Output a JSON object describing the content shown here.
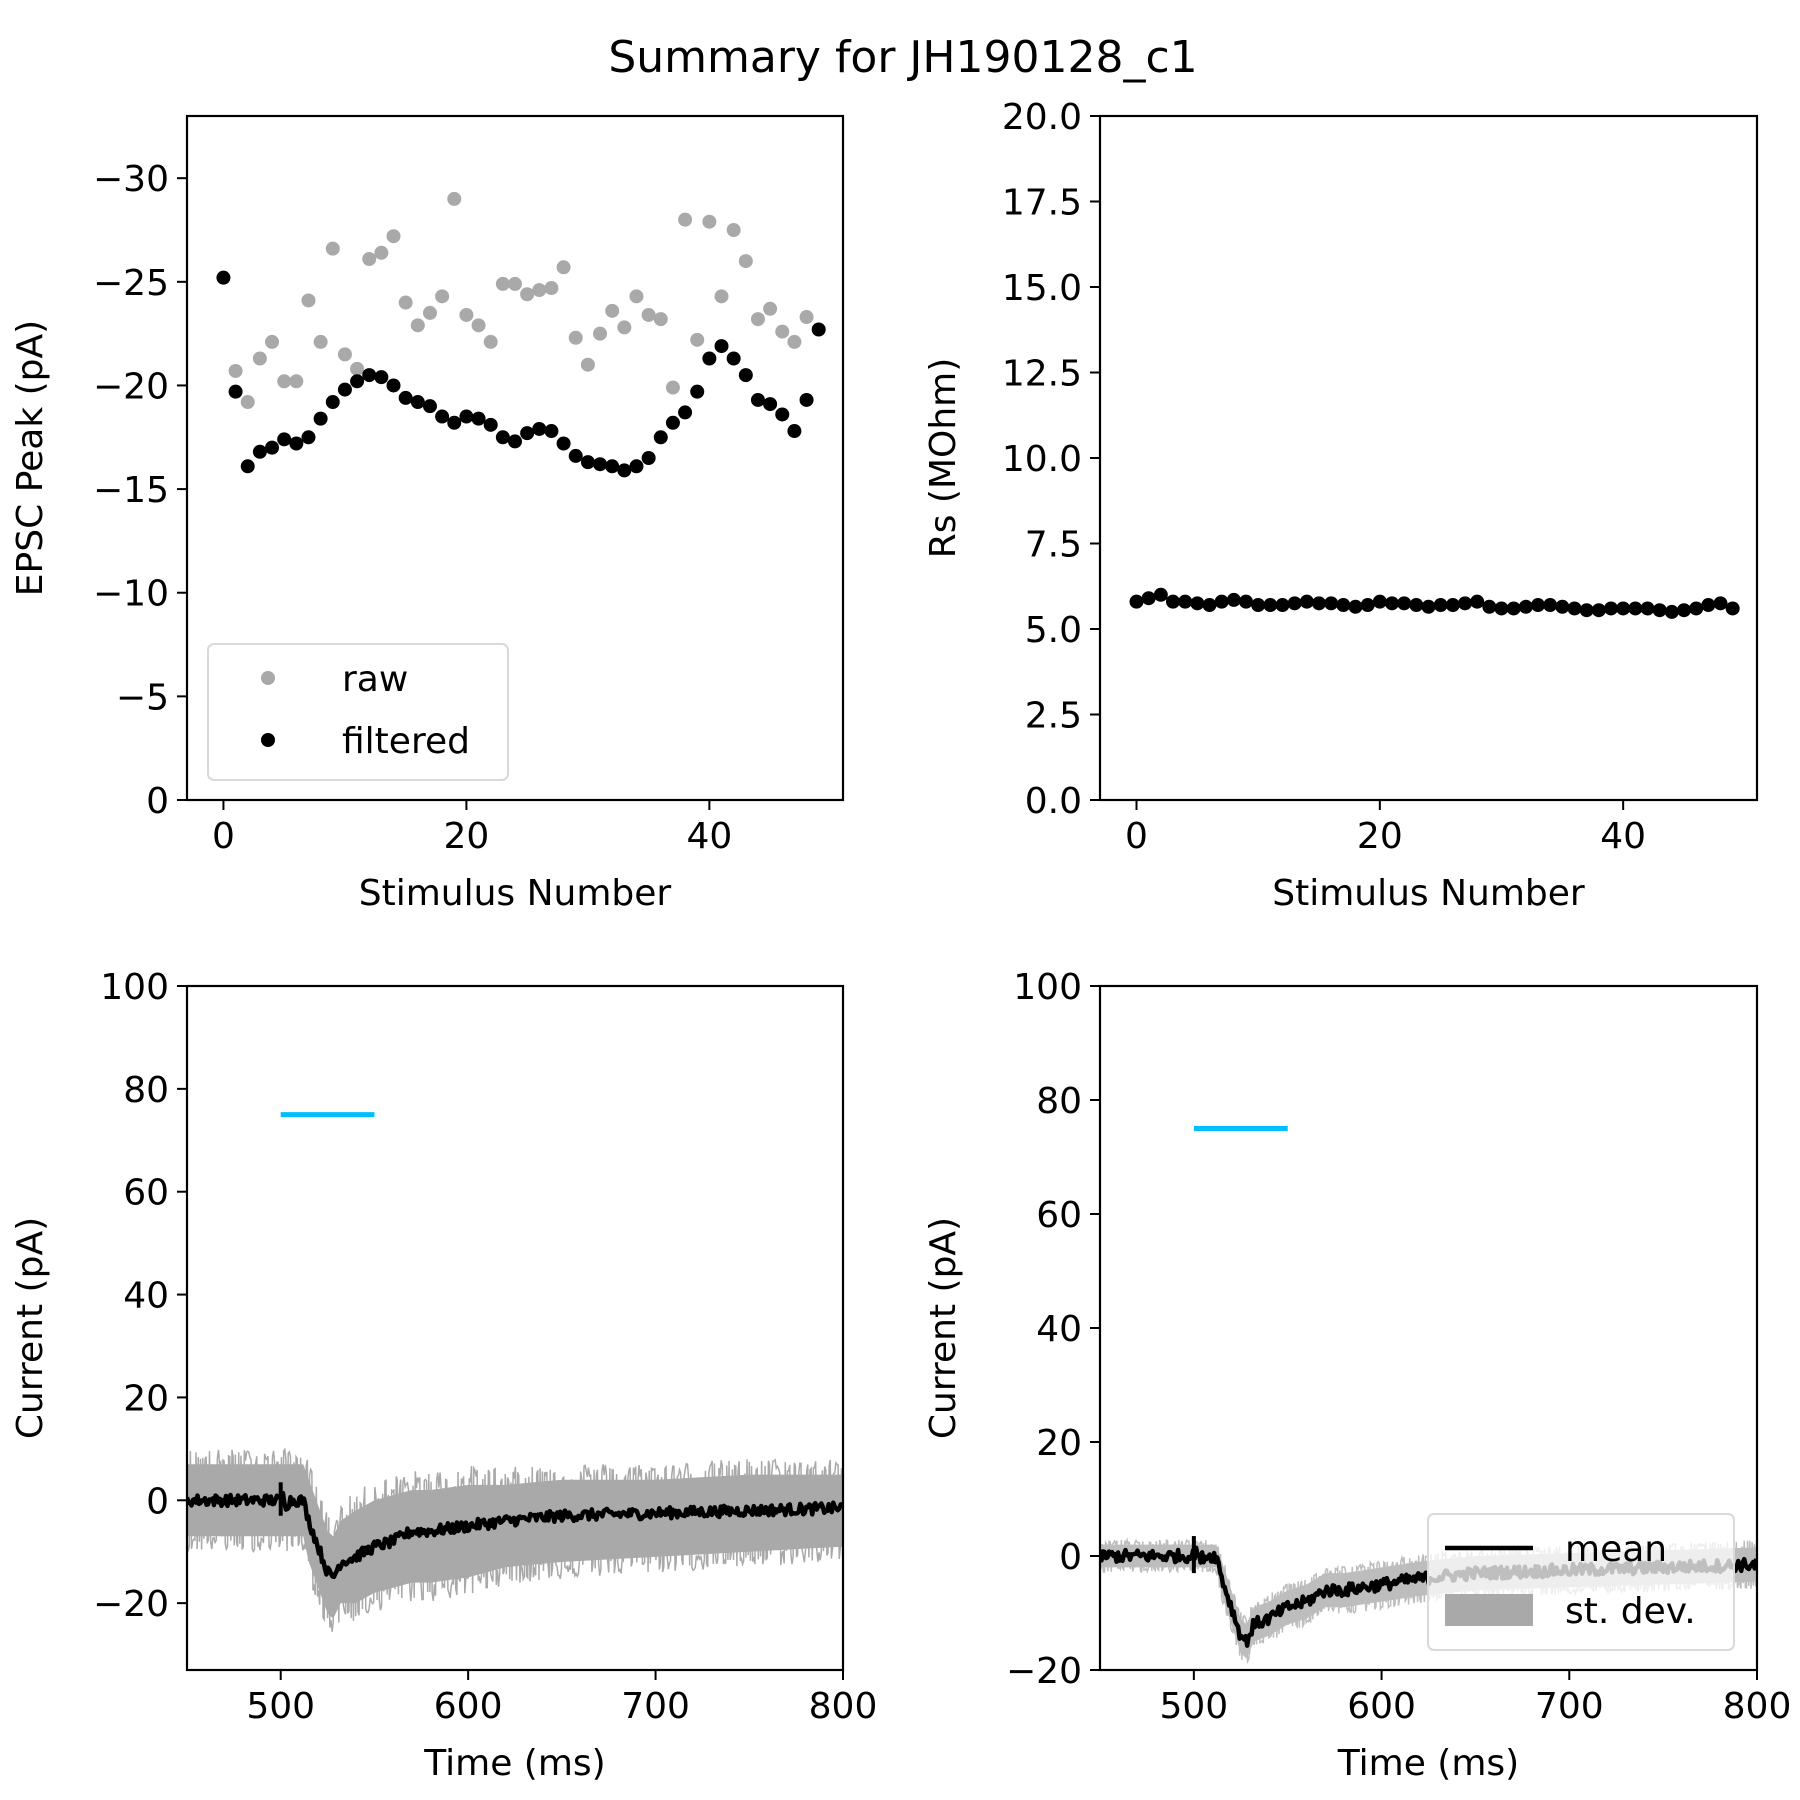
{
  "figure": {
    "title": "Summary for JH190128_c1"
  },
  "chart_data": [
    {
      "type": "scatter",
      "xlabel": "Stimulus Number",
      "ylabel": "EPSC Peak (pA)",
      "xlim": [
        -3,
        51
      ],
      "ylim": [
        0,
        -33
      ],
      "y_inverted": true,
      "xticks": [
        0,
        20,
        40
      ],
      "yticks": [
        0,
        -5,
        -10,
        -15,
        -20,
        -25,
        -30
      ],
      "ytick_labels": [
        "0",
        "−5",
        "−10",
        "−15",
        "−20",
        "−25",
        "−30"
      ],
      "grid": false,
      "legend": {
        "placement": "lower-left",
        "entries": [
          "raw",
          "filtered"
        ]
      },
      "series": [
        {
          "name": "raw",
          "color": "#a9a9a9",
          "x": [
            1,
            2,
            3,
            4,
            5,
            6,
            7,
            8,
            9,
            10,
            11,
            12,
            13,
            14,
            15,
            16,
            17,
            18,
            19,
            20,
            21,
            22,
            23,
            24,
            25,
            26,
            27,
            28,
            29,
            30,
            31,
            32,
            33,
            34,
            35,
            36,
            37,
            38,
            39,
            40,
            41,
            42,
            43,
            44,
            45,
            46,
            47,
            48
          ],
          "y": [
            -20.7,
            -19.2,
            -21.3,
            -22.1,
            -20.2,
            -20.2,
            -24.1,
            -22.1,
            -26.6,
            -21.5,
            -20.8,
            -26.1,
            -26.4,
            -27.2,
            -24.0,
            -22.9,
            -23.5,
            -24.3,
            -29.0,
            -23.4,
            -22.9,
            -22.1,
            -24.9,
            -24.9,
            -24.4,
            -24.6,
            -24.7,
            -25.7,
            -22.3,
            -21.0,
            -22.5,
            -23.6,
            -22.8,
            -24.3,
            -23.4,
            -23.2,
            -19.9,
            -28.0,
            -22.2,
            -27.9,
            -24.3,
            -27.5,
            -26.0,
            -23.2,
            -23.7,
            -22.6,
            -22.1,
            -23.3
          ]
        },
        {
          "name": "filtered",
          "color": "#000000",
          "x": [
            0,
            1,
            2,
            3,
            4,
            5,
            6,
            7,
            8,
            9,
            10,
            11,
            12,
            13,
            14,
            15,
            16,
            17,
            18,
            19,
            20,
            21,
            22,
            23,
            24,
            25,
            26,
            27,
            28,
            29,
            30,
            31,
            32,
            33,
            34,
            35,
            36,
            37,
            38,
            39,
            40,
            41,
            42,
            43,
            44,
            45,
            46,
            47,
            48,
            49
          ],
          "y": [
            -25.2,
            -19.7,
            -16.1,
            -16.8,
            -17.0,
            -17.4,
            -17.2,
            -17.5,
            -18.4,
            -19.2,
            -19.8,
            -20.2,
            -20.5,
            -20.4,
            -20.0,
            -19.4,
            -19.2,
            -19.0,
            -18.5,
            -18.2,
            -18.5,
            -18.4,
            -18.1,
            -17.5,
            -17.3,
            -17.7,
            -17.9,
            -17.8,
            -17.2,
            -16.6,
            -16.3,
            -16.2,
            -16.1,
            -15.9,
            -16.1,
            -16.5,
            -17.5,
            -18.2,
            -18.7,
            -19.7,
            -21.3,
            -21.9,
            -21.3,
            -20.5,
            -19.3,
            -19.1,
            -18.6,
            -17.8,
            -19.3,
            -22.7
          ]
        }
      ]
    },
    {
      "type": "line",
      "xlabel": "Stimulus Number",
      "ylabel": "Rs (MOhm)",
      "xlim": [
        -3,
        51
      ],
      "ylim": [
        0,
        20
      ],
      "xticks": [
        0,
        20,
        40
      ],
      "yticks": [
        0.0,
        2.5,
        5.0,
        7.5,
        10.0,
        12.5,
        15.0,
        17.5,
        20.0
      ],
      "ytick_labels": [
        "0.0",
        "2.5",
        "5.0",
        "7.5",
        "10.0",
        "12.5",
        "15.0",
        "17.5",
        "20.0"
      ],
      "grid": false,
      "series": [
        {
          "color": "#000000",
          "marker": "circle",
          "x": [
            0,
            1,
            2,
            3,
            4,
            5,
            6,
            7,
            8,
            9,
            10,
            11,
            12,
            13,
            14,
            15,
            16,
            17,
            18,
            19,
            20,
            21,
            22,
            23,
            24,
            25,
            26,
            27,
            28,
            29,
            30,
            31,
            32,
            33,
            34,
            35,
            36,
            37,
            38,
            39,
            40,
            41,
            42,
            43,
            44,
            45,
            46,
            47,
            48,
            49
          ],
          "y": [
            5.8,
            5.9,
            6.0,
            5.8,
            5.8,
            5.75,
            5.7,
            5.8,
            5.85,
            5.8,
            5.7,
            5.7,
            5.7,
            5.75,
            5.8,
            5.75,
            5.75,
            5.7,
            5.65,
            5.7,
            5.8,
            5.75,
            5.75,
            5.7,
            5.65,
            5.7,
            5.7,
            5.75,
            5.8,
            5.65,
            5.6,
            5.6,
            5.65,
            5.7,
            5.7,
            5.65,
            5.6,
            5.55,
            5.55,
            5.6,
            5.6,
            5.6,
            5.6,
            5.55,
            5.5,
            5.55,
            5.6,
            5.7,
            5.75,
            5.6
          ]
        }
      ]
    },
    {
      "type": "line",
      "xlabel": "Time (ms)",
      "ylabel": "Current (pA)",
      "xlim": [
        450,
        800
      ],
      "ylim": [
        -33,
        100
      ],
      "xticks": [
        500,
        600,
        700,
        800
      ],
      "yticks": [
        -20,
        0,
        20,
        40,
        60,
        80,
        100
      ],
      "ytick_labels": [
        "−20",
        "0",
        "20",
        "40",
        "60",
        "80",
        "100"
      ],
      "grid": false,
      "stimulus_bar": {
        "x": [
          500,
          550
        ],
        "y": 75,
        "color": "#00bfff"
      },
      "series": [
        {
          "name": "mean",
          "color": "#000000",
          "x": [
            450,
            470,
            490,
            500,
            501,
            503,
            505,
            512,
            515,
            520,
            525,
            528,
            532,
            540,
            550,
            560,
            570,
            580,
            600,
            620,
            650,
            700,
            750,
            800
          ],
          "y": [
            0,
            0,
            0,
            0,
            1,
            -1,
            0,
            0,
            -4,
            -9,
            -14,
            -15,
            -12,
            -11,
            -9,
            -8,
            -6,
            -6,
            -5,
            -4,
            -3,
            -2.5,
            -2,
            -1.5
          ]
        },
        {
          "name": "st. dev.",
          "color": "#a9a9a9",
          "type": "band",
          "x": [
            450,
            470,
            490,
            500,
            512,
            515,
            520,
            525,
            528,
            532,
            540,
            550,
            560,
            570,
            580,
            600,
            620,
            650,
            700,
            750,
            800
          ],
          "y_upper": [
            7,
            7,
            7,
            7,
            7,
            4,
            -1,
            -6,
            -7,
            -4,
            -2,
            0,
            1,
            2,
            2,
            3,
            3,
            4,
            4,
            5,
            5
          ],
          "y_lower": [
            -7,
            -7,
            -7,
            -7,
            -7,
            -12,
            -17,
            -22,
            -23,
            -20,
            -20,
            -18,
            -17,
            -16,
            -16,
            -15,
            -13,
            -12,
            -11,
            -10,
            -9
          ]
        }
      ]
    },
    {
      "type": "line",
      "xlabel": "Time (ms)",
      "ylabel": "Current (pA)",
      "xlim": [
        450,
        800
      ],
      "ylim": [
        -20,
        100
      ],
      "xticks": [
        500,
        600,
        700,
        800
      ],
      "yticks": [
        -20,
        0,
        20,
        40,
        60,
        80,
        100
      ],
      "ytick_labels": [
        "−20",
        "0",
        "20",
        "40",
        "60",
        "80",
        "100"
      ],
      "grid": false,
      "legend": {
        "placement": "lower-right",
        "entries": [
          "mean",
          "st. dev."
        ]
      },
      "stimulus_bar": {
        "x": [
          500,
          550
        ],
        "y": 75,
        "color": "#00bfff"
      },
      "series": [
        {
          "name": "mean",
          "color": "#000000",
          "x": [
            450,
            470,
            490,
            500,
            501,
            503,
            505,
            512,
            515,
            520,
            525,
            528,
            532,
            540,
            550,
            560,
            570,
            580,
            600,
            620,
            650,
            700,
            750,
            800
          ],
          "y": [
            0,
            0,
            0,
            0,
            1.5,
            -1,
            0,
            0,
            -4,
            -9,
            -14,
            -15,
            -12,
            -11,
            -9,
            -8,
            -6,
            -6,
            -5,
            -4,
            -3,
            -2.5,
            -2,
            -1.5
          ]
        },
        {
          "name": "st. dev.",
          "color": "#a9a9a9",
          "type": "band",
          "x": [
            450,
            470,
            490,
            500,
            512,
            515,
            520,
            525,
            528,
            532,
            540,
            550,
            560,
            570,
            580,
            600,
            620,
            650,
            700,
            750,
            800
          ],
          "y_upper": [
            2,
            2,
            2,
            2,
            2,
            -1,
            -6,
            -11,
            -12,
            -9,
            -8,
            -6,
            -5,
            -3,
            -3,
            -2,
            -1,
            0,
            0.5,
            1,
            1.5
          ],
          "y_lower": [
            -2,
            -2,
            -2,
            -2,
            -2,
            -7,
            -12,
            -17,
            -18,
            -15,
            -14,
            -12,
            -11,
            -9,
            -9,
            -8,
            -7,
            -6,
            -5.5,
            -5,
            -4.5
          ]
        }
      ]
    }
  ]
}
